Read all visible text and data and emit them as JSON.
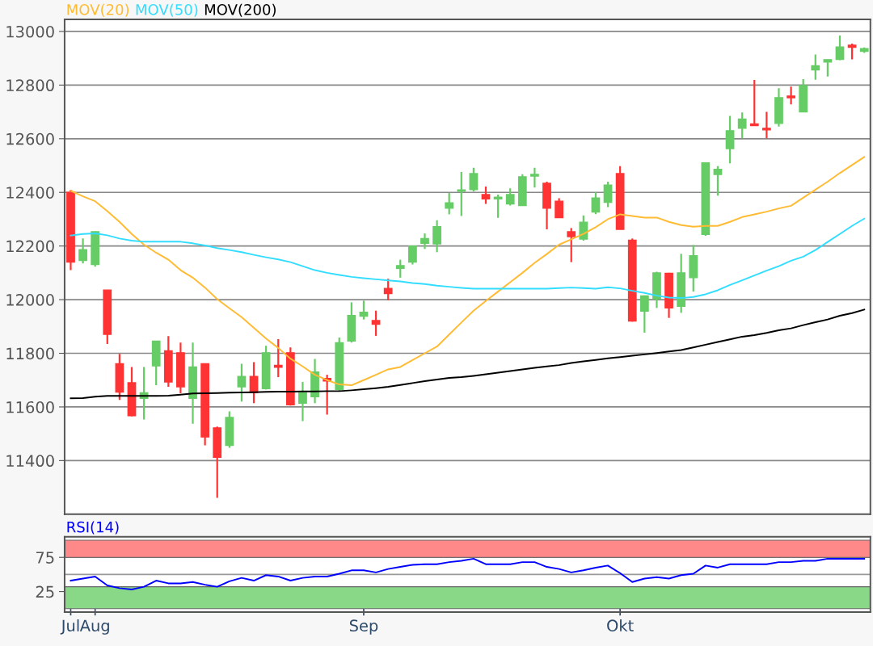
{
  "chart_data": [
    {
      "type": "candlestick",
      "tick_labels": "y",
      "grid": "y",
      "legend": "top left",
      "categories": [
        null,
        null,
        null,
        null,
        null,
        null,
        null,
        null,
        null,
        null,
        null,
        null,
        null,
        null,
        null,
        null,
        null,
        null,
        null,
        null,
        null,
        null,
        null,
        null,
        null,
        null,
        null,
        null,
        null,
        null,
        null,
        null,
        null,
        null,
        null,
        null,
        null,
        null,
        null,
        null,
        null,
        null,
        null,
        null,
        null,
        null,
        null,
        null,
        null,
        null,
        null,
        null,
        null,
        null,
        null,
        null,
        null,
        null,
        null,
        null,
        null,
        null,
        null,
        null,
        null,
        null
      ],
      "ohlc": [
        [
          12400,
          12410,
          12110,
          12140
        ],
        [
          12146,
          12228,
          12135,
          12186
        ],
        [
          12131,
          12255,
          12123,
          12253
        ],
        [
          12036,
          12036,
          11835,
          11871
        ],
        [
          11761,
          11798,
          11626,
          11655
        ],
        [
          11690,
          11749,
          11565,
          11567
        ],
        [
          11632,
          11749,
          11553,
          11653
        ],
        [
          11753,
          11845,
          11681,
          11845
        ],
        [
          11809,
          11864,
          11675,
          11693
        ],
        [
          11802,
          11840,
          11651,
          11675
        ],
        [
          11632,
          11840,
          11537,
          11749
        ],
        [
          11761,
          11761,
          11457,
          11488
        ],
        [
          11522,
          11527,
          11261,
          11412
        ],
        [
          11457,
          11583,
          11448,
          11561
        ],
        [
          11675,
          11761,
          11620,
          11714
        ],
        [
          11714,
          11767,
          11614,
          11653
        ],
        [
          11668,
          11828,
          11665,
          11802
        ],
        [
          11755,
          11853,
          11711,
          11748
        ],
        [
          11802,
          11822,
          11605,
          11608
        ],
        [
          11614,
          11693,
          11547,
          11653
        ],
        [
          11638,
          11779,
          11614,
          11730
        ],
        [
          11706,
          11720,
          11571,
          11697
        ],
        [
          11665,
          11859,
          11658,
          11839
        ],
        [
          11846,
          11990,
          11840,
          11941
        ],
        [
          11938,
          11996,
          11926,
          11953
        ],
        [
          11922,
          11959,
          11865,
          11908
        ],
        [
          12042,
          12078,
          11998,
          12023
        ],
        [
          12117,
          12149,
          12082,
          12127
        ],
        [
          12140,
          12202,
          12131,
          12200
        ],
        [
          12210,
          12247,
          12189,
          12228
        ],
        [
          12208,
          12296,
          12177,
          12272
        ],
        [
          12341,
          12398,
          12318,
          12361
        ],
        [
          12404,
          12476,
          12312,
          12409
        ],
        [
          12410,
          12492,
          12404,
          12470
        ],
        [
          12392,
          12422,
          12357,
          12376
        ],
        [
          12376,
          12392,
          12305,
          12382
        ],
        [
          12357,
          12415,
          12351,
          12392
        ],
        [
          12351,
          12468,
          12351,
          12458
        ],
        [
          12461,
          12492,
          12418,
          12467
        ],
        [
          12434,
          12440,
          12262,
          12341
        ],
        [
          12367,
          12378,
          12306,
          12306
        ],
        [
          12253,
          12267,
          12140,
          12235
        ],
        [
          12226,
          12314,
          12220,
          12289
        ],
        [
          12327,
          12400,
          12319,
          12379
        ],
        [
          12363,
          12440,
          12345,
          12427
        ],
        [
          12470,
          12498,
          12262,
          12262
        ],
        [
          12222,
          12228,
          11918,
          11920
        ],
        [
          11957,
          12016,
          11877,
          12014
        ],
        [
          12002,
          12104,
          11969,
          12100
        ],
        [
          12098,
          12100,
          11932,
          11969
        ],
        [
          11975,
          12171,
          11951,
          12100
        ],
        [
          12082,
          12204,
          12030,
          12164
        ],
        [
          12243,
          12512,
          12238,
          12510
        ],
        [
          12467,
          12498,
          12388,
          12486
        ],
        [
          12563,
          12685,
          12508,
          12630
        ],
        [
          12639,
          12698,
          12602,
          12673
        ],
        [
          12655,
          12819,
          12649,
          12649
        ],
        [
          12639,
          12700,
          12602,
          12633
        ],
        [
          12657,
          12788,
          12645,
          12753
        ],
        [
          12759,
          12794,
          12728,
          12753
        ],
        [
          12700,
          12822,
          12700,
          12798
        ],
        [
          12857,
          12914,
          12820,
          12872
        ],
        [
          12886,
          12895,
          12832,
          12895
        ],
        [
          12896,
          12985,
          12893,
          12942
        ],
        [
          12949,
          12955,
          12896,
          12941
        ],
        [
          12926,
          12940,
          12920,
          12936
        ]
      ],
      "colors": [
        "#ff3333",
        "#66cc66",
        "#66cc66",
        "#ff3333",
        "#ff3333",
        "#ff3333",
        "#66cc66",
        "#66cc66",
        "#ff3333",
        "#ff3333",
        "#66cc66",
        "#ff3333",
        "#ff3333",
        "#66cc66",
        "#66cc66",
        "#ff3333",
        "#66cc66",
        "#ff3333",
        "#ff3333",
        "#66cc66",
        "#66cc66",
        "#ff3333",
        "#66cc66",
        "#66cc66",
        "#66cc66",
        "#ff3333",
        "#ff3333",
        "#66cc66",
        "#66cc66",
        "#66cc66",
        "#66cc66",
        "#66cc66",
        "#66cc66",
        "#66cc66",
        "#ff3333",
        "#66cc66",
        "#66cc66",
        "#66cc66",
        "#66cc66",
        "#ff3333",
        "#ff3333",
        "#ff3333",
        "#66cc66",
        "#66cc66",
        "#66cc66",
        "#ff3333",
        "#ff3333",
        "#66cc66",
        "#66cc66",
        "#ff3333",
        "#66cc66",
        "#66cc66",
        "#66cc66",
        "#66cc66",
        "#66cc66",
        "#66cc66",
        "#ff3333",
        "#ff3333",
        "#66cc66",
        "#ff3333",
        "#66cc66",
        "#66cc66",
        "#66cc66",
        "#66cc66",
        "#ff3333",
        "#66cc66"
      ],
      "series": [
        {
          "type": "line",
          "name": "MOV(20)",
          "color": "#ffbb33",
          "values": [
            12406,
            12385,
            12367,
            12330,
            12290,
            12245,
            12205,
            12175,
            12149,
            12110,
            12082,
            12045,
            12002,
            11968,
            11935,
            11895,
            11855,
            11820,
            11780,
            11751,
            11720,
            11700,
            11684,
            11681,
            11700,
            11720,
            11740,
            11749,
            11775,
            11800,
            11825,
            11870,
            11915,
            11959,
            11995,
            12030,
            12065,
            12100,
            12137,
            12170,
            12205,
            12225,
            12245,
            12270,
            12300,
            12318,
            12312,
            12306,
            12306,
            12290,
            12278,
            12272,
            12275,
            12275,
            12290,
            12308,
            12318,
            12328,
            12340,
            12350,
            12380,
            12410,
            12440,
            12472,
            12502,
            12532
          ]
        },
        {
          "type": "line",
          "name": "MOV(50)",
          "color": "#33ddff",
          "values": [
            12239,
            12245,
            12247,
            12240,
            12228,
            12220,
            12216,
            12216,
            12216,
            12216,
            12210,
            12202,
            12192,
            12185,
            12177,
            12167,
            12158,
            12150,
            12140,
            12125,
            12110,
            12100,
            12092,
            12085,
            12080,
            12076,
            12072,
            12068,
            12062,
            12058,
            12052,
            12048,
            12044,
            12041,
            12041,
            12041,
            12041,
            12041,
            12041,
            12041,
            12043,
            12045,
            12043,
            12041,
            12046,
            12042,
            12033,
            12025,
            12015,
            12008,
            12006,
            12010,
            12020,
            12035,
            12055,
            12072,
            12090,
            12108,
            12125,
            12145,
            12160,
            12185,
            12215,
            12245,
            12275,
            12302
          ]
        },
        {
          "type": "line",
          "name": "MOV(200)",
          "color": "#000000",
          "values": [
            11632,
            11633,
            11638,
            11641,
            11641,
            11641,
            11641,
            11641,
            11642,
            11646,
            11650,
            11651,
            11652,
            11653,
            11654,
            11655,
            11656,
            11657,
            11657,
            11658,
            11658,
            11659,
            11659,
            11662,
            11666,
            11670,
            11675,
            11682,
            11689,
            11696,
            11702,
            11708,
            11711,
            11716,
            11722,
            11728,
            11734,
            11740,
            11746,
            11751,
            11756,
            11764,
            11770,
            11775,
            11781,
            11786,
            11791,
            11796,
            11801,
            11807,
            11812,
            11822,
            11832,
            11842,
            11852,
            11862,
            11868,
            11876,
            11886,
            11893,
            11905,
            11916,
            11926,
            11940,
            11950,
            11963
          ]
        }
      ],
      "ylim": [
        11200,
        13045
      ],
      "yticks": [
        11400,
        11600,
        11800,
        12000,
        12200,
        12400,
        12600,
        12800,
        13000
      ]
    },
    {
      "type": "line",
      "grid": "y",
      "legend": "top left",
      "categories": [
        "Jul",
        null,
        "Aug",
        null,
        null,
        null,
        null,
        null,
        null,
        null,
        null,
        null,
        null,
        null,
        null,
        null,
        null,
        null,
        null,
        null,
        null,
        null,
        null,
        null,
        "Sep",
        null,
        null,
        null,
        null,
        null,
        null,
        null,
        null,
        null,
        null,
        null,
        null,
        null,
        null,
        null,
        null,
        null,
        null,
        null,
        null,
        "Okt",
        null,
        null,
        null,
        null,
        null,
        null,
        null,
        null,
        null,
        null,
        null,
        null,
        null,
        null,
        null,
        null,
        null,
        null,
        null,
        null
      ],
      "series": [
        {
          "name": "RSI(14)",
          "color": "#0000ff",
          "values": [
            41,
            44,
            47,
            34,
            30,
            28,
            32,
            41,
            37,
            37,
            39,
            35,
            32,
            40,
            45,
            41,
            49,
            47,
            41,
            45,
            47,
            47,
            51,
            56,
            56,
            53,
            58,
            61,
            64,
            65,
            65,
            68,
            70,
            73,
            65,
            65,
            65,
            68,
            68,
            61,
            58,
            53,
            56,
            60,
            63,
            52,
            39,
            44,
            46,
            44,
            49,
            51,
            63,
            60,
            65,
            65,
            65,
            65,
            68,
            68,
            70,
            70,
            73,
            73,
            73,
            73
          ]
        }
      ],
      "bands": [
        {
          "axis": "y",
          "from": 75,
          "to": 100,
          "color": "#ff8888"
        },
        {
          "axis": "y",
          "from": 0,
          "to": 32,
          "color": "#88d888"
        }
      ],
      "ref_lines": [
        {
          "axis": "y",
          "value": 50,
          "color": "#999999"
        }
      ],
      "ylim": [
        -5,
        105
      ],
      "yticks": [
        25,
        75
      ]
    }
  ]
}
